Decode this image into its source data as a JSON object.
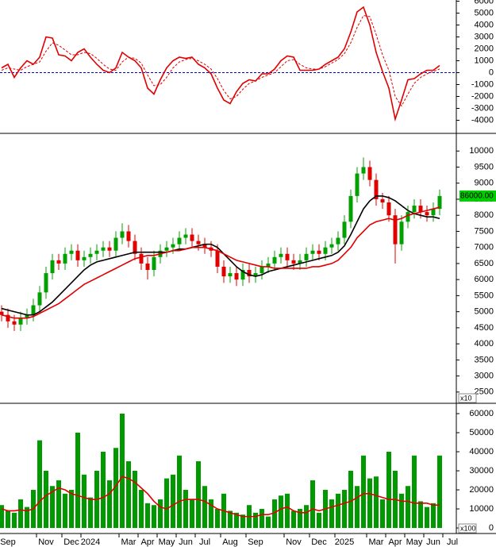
{
  "chart_data": [
    {
      "type": "line",
      "ylim": [
        -4900,
        6100
      ],
      "yticks": [
        6000,
        5000,
        4000,
        3000,
        2000,
        1000,
        0,
        -1000,
        -2000,
        -3000,
        -4000
      ],
      "zero_line_color": "#0000cc",
      "series": [
        {
          "color": "#e00000",
          "values": [
            400,
            700,
            -400,
            400,
            1000,
            700,
            1300,
            3000,
            2900,
            1500,
            1400,
            1000,
            1700,
            2000,
            1300,
            700,
            200,
            0,
            400,
            1700,
            1300,
            1000,
            400,
            -1300,
            -1800,
            -600,
            400,
            1000,
            1300,
            1200,
            1300,
            700,
            400,
            -100,
            -1300,
            -2300,
            -2600,
            -1600,
            -900,
            -600,
            -700,
            -100,
            -100,
            300,
            1000,
            1400,
            1300,
            200,
            200,
            200,
            300,
            700,
            1000,
            1300,
            2000,
            3400,
            5100,
            5500,
            4000,
            1700,
            100,
            -1300,
            -3900,
            -2300,
            -600,
            -500,
            -100,
            200,
            200,
            600,
            null,
            null
          ]
        },
        {
          "color": "#e00000",
          "dashed": true,
          "values": [
            200,
            400,
            300,
            200,
            500,
            700,
            900,
            1800,
            2500,
            2300,
            1900,
            1500,
            1500,
            1700,
            1600,
            1200,
            700,
            300,
            200,
            900,
            1300,
            1200,
            800,
            -200,
            -1100,
            -1000,
            -400,
            400,
            900,
            1100,
            1200,
            1000,
            700,
            300,
            -500,
            -1500,
            -2200,
            -2000,
            -1400,
            -900,
            -700,
            -400,
            -200,
            0,
            500,
            1000,
            1100,
            700,
            400,
            300,
            300,
            500,
            800,
            1100,
            1600,
            2500,
            3800,
            4800,
            4700,
            3200,
            1500,
            200,
            -2000,
            -2800,
            -1800,
            -900,
            -400,
            -100,
            100,
            300,
            null,
            null
          ]
        }
      ]
    },
    {
      "type": "candlestick",
      "ylim": [
        2150,
        10450
      ],
      "yticks": [
        10000,
        9500,
        9000,
        8500,
        8000,
        7500,
        7000,
        6500,
        6000,
        5500,
        5000,
        4500,
        4000,
        3500,
        3000,
        2500
      ],
      "unit_label": "x10",
      "price_label": "86000.00",
      "up_color": "#00a000",
      "down_color": "#e00000",
      "open": [
        5000,
        4900,
        4700,
        4600,
        4800,
        4900,
        5200,
        5600,
        6200,
        6600,
        6500,
        6800,
        6900,
        6600,
        6700,
        6800,
        6900,
        7000,
        6900,
        7300,
        7500,
        7200,
        6800,
        6500,
        6300,
        6700,
        6900,
        7000,
        7100,
        7300,
        7400,
        7200,
        7100,
        7000,
        6900,
        6400,
        6100,
        6200,
        6000,
        6300,
        6100,
        6200,
        6400,
        6500,
        6700,
        6800,
        6600,
        6500,
        6600,
        6800,
        6900,
        6800,
        7000,
        7100,
        7300,
        7800,
        8600,
        9300,
        9500,
        9100,
        8500,
        8400,
        8000,
        7100,
        7800,
        8100,
        8300,
        8100,
        8000,
        8200,
        null,
        null
      ],
      "high": [
        5200,
        5100,
        4900,
        5000,
        5100,
        5400,
        5800,
        6400,
        6800,
        6800,
        7000,
        7100,
        7100,
        6900,
        7000,
        7100,
        7200,
        7200,
        7500,
        7750,
        7700,
        7400,
        7000,
        6700,
        6900,
        7100,
        7200,
        7300,
        7500,
        7600,
        7600,
        7400,
        7300,
        7200,
        7100,
        6600,
        6400,
        6400,
        6500,
        6500,
        6400,
        6600,
        6700,
        6900,
        7000,
        7000,
        6800,
        6800,
        7000,
        7100,
        7100,
        7200,
        7300,
        7500,
        8000,
        8800,
        9500,
        9800,
        9700,
        9300,
        8700,
        8600,
        8200,
        8000,
        8300,
        8500,
        8500,
        8300,
        8400,
        8800,
        null,
        null
      ],
      "low": [
        4700,
        4500,
        4400,
        4400,
        4600,
        4700,
        5000,
        5400,
        6000,
        6300,
        6300,
        6600,
        6400,
        6400,
        6500,
        6600,
        6700,
        6700,
        6700,
        7100,
        7000,
        6600,
        6300,
        6000,
        6100,
        6500,
        6700,
        6800,
        6900,
        7100,
        7000,
        6900,
        6800,
        6700,
        6200,
        5900,
        5900,
        5800,
        5800,
        5900,
        5900,
        6000,
        6200,
        6300,
        6500,
        6400,
        6300,
        6300,
        6400,
        6600,
        6600,
        6600,
        6800,
        6900,
        7100,
        7600,
        8400,
        9100,
        8900,
        8300,
        8200,
        7800,
        6500,
        6900,
        7600,
        7900,
        7900,
        7800,
        7800,
        8000,
        null,
        null
      ],
      "close": [
        4900,
        4700,
        4600,
        4800,
        4900,
        5200,
        5600,
        6200,
        6600,
        6500,
        6800,
        6900,
        6600,
        6700,
        6800,
        6900,
        7000,
        6900,
        7300,
        7500,
        7200,
        6800,
        6500,
        6300,
        6700,
        6900,
        7000,
        7100,
        7300,
        7400,
        7200,
        7100,
        7000,
        6900,
        6400,
        6100,
        6200,
        6000,
        6300,
        6100,
        6200,
        6400,
        6500,
        6700,
        6800,
        6600,
        6500,
        6600,
        6800,
        6900,
        6800,
        7000,
        7100,
        7300,
        7800,
        8600,
        9300,
        9500,
        9100,
        8500,
        8400,
        8000,
        7100,
        7800,
        8100,
        8300,
        8100,
        8000,
        8200,
        8600,
        null,
        null
      ],
      "series": [
        {
          "color": "#000000",
          "values": [
            5100,
            5050,
            5000,
            4950,
            4900,
            4900,
            5000,
            5150,
            5300,
            5500,
            5700,
            5900,
            6100,
            6300,
            6450,
            6550,
            6600,
            6650,
            6700,
            6750,
            6800,
            6850,
            6850,
            6850,
            6850,
            6850,
            6850,
            6900,
            6950,
            6950,
            7000,
            7050,
            7100,
            7100,
            7000,
            6800,
            6600,
            6400,
            6250,
            6150,
            6100,
            6150,
            6250,
            6300,
            6350,
            6400,
            6450,
            6500,
            6550,
            6600,
            6650,
            6700,
            6750,
            6850,
            7050,
            7400,
            7800,
            8200,
            8450,
            8600,
            8600,
            8550,
            8450,
            8300,
            8150,
            8050,
            8000,
            7950,
            7950,
            7900,
            null,
            null
          ]
        },
        {
          "color": "#e00000",
          "values": [
            4900,
            4850,
            4800,
            4800,
            4800,
            4850,
            4950,
            5050,
            5150,
            5250,
            5400,
            5550,
            5700,
            5850,
            5950,
            6050,
            6150,
            6250,
            6350,
            6450,
            6550,
            6650,
            6700,
            6750,
            6750,
            6800,
            6850,
            6900,
            6900,
            6950,
            7000,
            7000,
            7000,
            6950,
            6900,
            6800,
            6700,
            6600,
            6550,
            6500,
            6450,
            6400,
            6400,
            6350,
            6350,
            6350,
            6350,
            6350,
            6350,
            6400,
            6400,
            6450,
            6500,
            6600,
            6800,
            7000,
            7300,
            7500,
            7700,
            7800,
            7850,
            7900,
            7850,
            7900,
            8000,
            8050,
            8100,
            8150,
            8200,
            8250,
            null,
            null
          ]
        }
      ]
    },
    {
      "type": "bar",
      "ylim": [
        -2900,
        63750
      ],
      "yticks": [
        60000,
        50000,
        40000,
        30000,
        20000,
        10000,
        0
      ],
      "unit_label": "x100",
      "color": "#009900",
      "categories": [
        null,
        "Sep",
        null,
        null,
        null,
        null,
        null,
        "Nov",
        null,
        null,
        null,
        "Dec",
        null,
        null,
        "2024",
        null,
        null,
        null,
        null,
        null,
        "Mar",
        null,
        null,
        "Apr",
        null,
        null,
        "May",
        null,
        null,
        "Jun",
        null,
        null,
        "Jul",
        null,
        null,
        null,
        "Aug",
        null,
        null,
        null,
        "Sep",
        null,
        null,
        null,
        null,
        null,
        "Nov",
        null,
        null,
        null,
        "Dec",
        null,
        null,
        null,
        "2025",
        null,
        null,
        null,
        null,
        "Mar",
        null,
        null,
        "Apr",
        null,
        null,
        "May",
        null,
        null,
        "Jun",
        null,
        null,
        "Jul"
      ],
      "values": [
        12000,
        9000,
        8000,
        15000,
        11000,
        20000,
        46000,
        30000,
        22000,
        25000,
        18000,
        20000,
        50000,
        28000,
        16000,
        30000,
        40000,
        25000,
        42000,
        60000,
        35000,
        30000,
        20000,
        13000,
        12000,
        15000,
        26000,
        28000,
        38000,
        20000,
        15000,
        35000,
        22000,
        15000,
        10000,
        18000,
        9000,
        8000,
        7000,
        12000,
        8000,
        10000,
        6000,
        15000,
        17000,
        18000,
        9000,
        10000,
        12000,
        25000,
        8000,
        20000,
        15000,
        18000,
        20000,
        30000,
        22000,
        38000,
        26000,
        27000,
        15000,
        40000,
        30000,
        18000,
        22000,
        38000,
        14000,
        11000,
        13000,
        38000,
        null,
        null
      ],
      "series": [
        {
          "color": "#e00000",
          "values": [
            10000,
            9000,
            9000,
            9500,
            9000,
            10000,
            14000,
            17000,
            19000,
            21000,
            20000,
            18000,
            17000,
            16000,
            15000,
            15000,
            16000,
            18000,
            22000,
            27000,
            26000,
            24000,
            21000,
            18000,
            14000,
            11000,
            10000,
            12000,
            14000,
            15000,
            15000,
            15000,
            14000,
            12000,
            10000,
            9000,
            8000,
            7000,
            6000,
            6000,
            6000,
            7000,
            7000,
            8000,
            10000,
            11000,
            9000,
            8000,
            8000,
            10000,
            9000,
            10000,
            11000,
            12000,
            13000,
            14000,
            16000,
            18000,
            18000,
            17000,
            16000,
            15000,
            15000,
            14000,
            14000,
            13000,
            13000,
            13000,
            12000,
            12000,
            null,
            null
          ]
        }
      ]
    }
  ]
}
